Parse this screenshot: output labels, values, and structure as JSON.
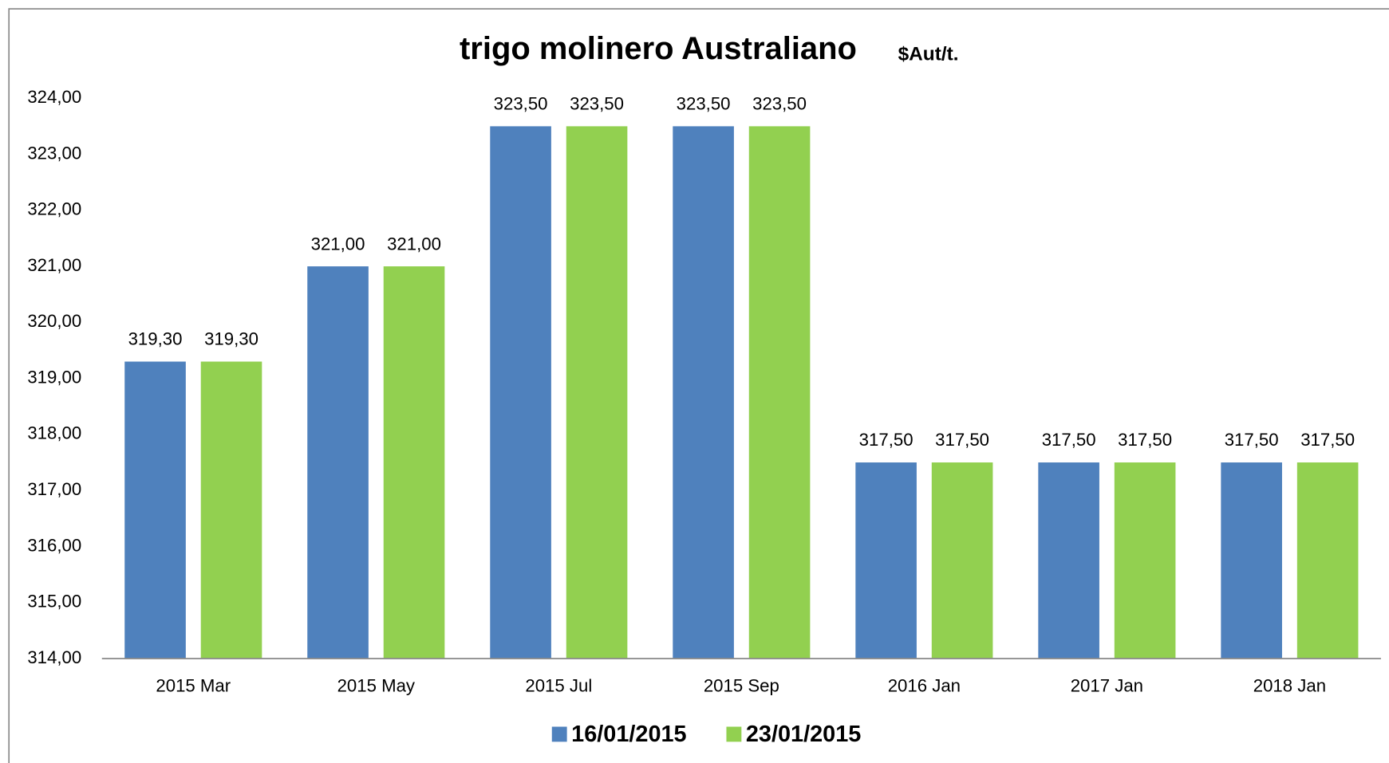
{
  "chart_data": {
    "type": "bar",
    "title": "trigo molinero Australiano",
    "subtitle": "$Aut/t.",
    "categories": [
      "2015 Mar",
      "2015 May",
      "2015 Jul",
      "2015 Sep",
      "2016 Jan",
      "2017 Jan",
      "2018 Jan"
    ],
    "series": [
      {
        "name": "16/01/2015",
        "color": "#4f81bd",
        "values": [
          319.3,
          321,
          323.5,
          323.5,
          317.5,
          317.5,
          317.5
        ],
        "value_labels": [
          "319,30",
          "321,00",
          "323,50",
          "323,50",
          "317,50",
          "317,50",
          "317,50"
        ]
      },
      {
        "name": "23/01/2015",
        "color": "#92d050",
        "values": [
          319.3,
          321,
          323.5,
          323.5,
          317.5,
          317.5,
          317.5
        ],
        "value_labels": [
          "319,30",
          "321,00",
          "323,50",
          "323,50",
          "317,50",
          "317,50",
          "317,50"
        ]
      }
    ],
    "ylim": [
      314,
      324
    ],
    "yticks": [
      {
        "value": 314,
        "label": "314,00"
      },
      {
        "value": 315,
        "label": "315,00"
      },
      {
        "value": 316,
        "label": "316,00"
      },
      {
        "value": 317,
        "label": "317,00"
      },
      {
        "value": 318,
        "label": "318,00"
      },
      {
        "value": 319,
        "label": "319,00"
      },
      {
        "value": 320,
        "label": "320,00"
      },
      {
        "value": 321,
        "label": "321,00"
      },
      {
        "value": 322,
        "label": "322,00"
      },
      {
        "value": 323,
        "label": "323,00"
      },
      {
        "value": 324,
        "label": "324,00"
      }
    ],
    "grid": false,
    "legend": "bottom"
  }
}
